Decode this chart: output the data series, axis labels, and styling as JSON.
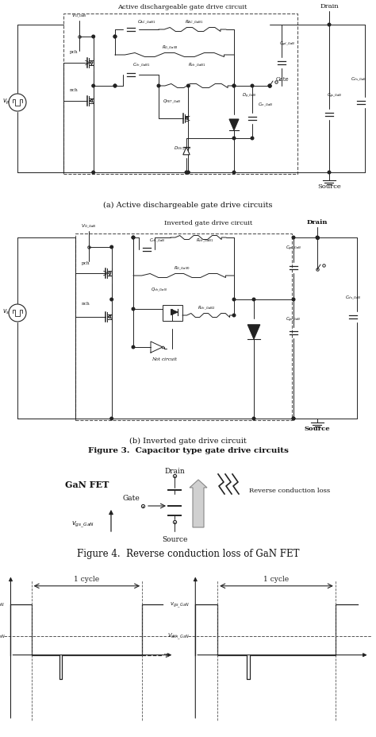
{
  "bg_color": "#ffffff",
  "fig_width": 4.74,
  "fig_height": 9.29,
  "dpi": 100,
  "caption_a": "(a) Active dischargeable gate drive circuits",
  "caption_b": "(b) Inverted gate drive circuit",
  "figure3_caption": "Figure 3.  Capacitor type gate drive circuits",
  "figure4_caption": "Figure 4.  Reverse conduction loss of GaN FET",
  "circuit_a_title": "Active dischargeable gate drive circuit",
  "circuit_b_title": "Inverted gate drive circuit",
  "lc": "#222222",
  "dc": "#555555"
}
